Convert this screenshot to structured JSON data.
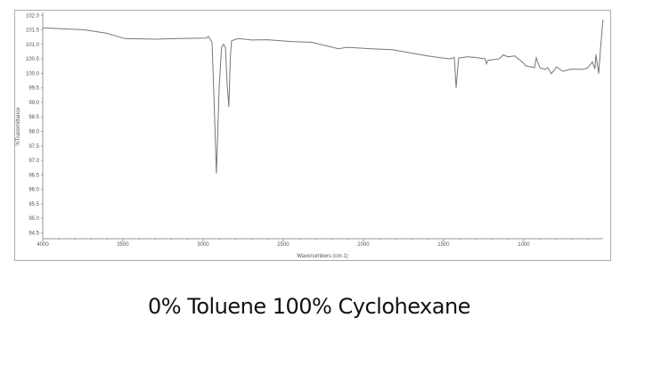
{
  "caption": "0% Toluene 100% Cyclohexane",
  "chart_data": {
    "type": "line",
    "title": "",
    "xlabel": "Wavenumbers (cm-1)",
    "ylabel": "%Transmittance",
    "xlim": [
      4000,
      505
    ],
    "ylim": [
      94.3,
      102.1
    ],
    "x_reversed": true,
    "grid": false,
    "x_ticks": [
      4000,
      3500,
      3000,
      2500,
      2000,
      1500,
      1000
    ],
    "y_ticks": [
      94.5,
      95.0,
      95.5,
      96.0,
      96.5,
      97.0,
      97.5,
      98.0,
      98.5,
      99.0,
      99.5,
      100.0,
      100.5,
      101.0,
      101.5,
      102.0
    ],
    "line_color": "#777777",
    "series": [
      {
        "points": [
          [
            4000,
            101.57
          ],
          [
            3739,
            101.5
          ],
          [
            3600,
            101.38
          ],
          [
            3489,
            101.2
          ],
          [
            3300,
            101.18
          ],
          [
            3156,
            101.2
          ],
          [
            2980,
            101.22
          ],
          [
            2967,
            101.27
          ],
          [
            2944,
            101.07
          ],
          [
            2930,
            98.8
          ],
          [
            2917,
            96.55
          ],
          [
            2900,
            99.5
          ],
          [
            2885,
            100.9
          ],
          [
            2872,
            101.0
          ],
          [
            2861,
            100.9
          ],
          [
            2850,
            99.6
          ],
          [
            2839,
            98.84
          ],
          [
            2830,
            100.6
          ],
          [
            2822,
            101.13
          ],
          [
            2778,
            101.2
          ],
          [
            2700,
            101.15
          ],
          [
            2600,
            101.16
          ],
          [
            2450,
            101.1
          ],
          [
            2322,
            101.07
          ],
          [
            2156,
            100.85
          ],
          [
            2100,
            100.9
          ],
          [
            2044,
            100.88
          ],
          [
            1950,
            100.85
          ],
          [
            1822,
            100.82
          ],
          [
            1700,
            100.7
          ],
          [
            1600,
            100.6
          ],
          [
            1530,
            100.55
          ],
          [
            1461,
            100.5
          ],
          [
            1433,
            100.55
          ],
          [
            1422,
            99.5
          ],
          [
            1406,
            100.53
          ],
          [
            1350,
            100.57
          ],
          [
            1300,
            100.55
          ],
          [
            1239,
            100.5
          ],
          [
            1233,
            100.33
          ],
          [
            1222,
            100.45
          ],
          [
            1156,
            100.5
          ],
          [
            1140,
            100.56
          ],
          [
            1128,
            100.64
          ],
          [
            1100,
            100.57
          ],
          [
            1056,
            100.6
          ],
          [
            1000,
            100.35
          ],
          [
            989,
            100.26
          ],
          [
            933,
            100.2
          ],
          [
            922,
            100.54
          ],
          [
            900,
            100.2
          ],
          [
            867,
            100.14
          ],
          [
            850,
            100.2
          ],
          [
            828,
            99.99
          ],
          [
            795,
            100.22
          ],
          [
            756,
            100.07
          ],
          [
            711,
            100.14
          ],
          [
            628,
            100.14
          ],
          [
            600,
            100.2
          ],
          [
            572,
            100.4
          ],
          [
            556,
            100.15
          ],
          [
            550,
            100.65
          ],
          [
            533,
            99.99
          ],
          [
            522,
            100.8
          ],
          [
            506,
            101.85
          ]
        ]
      }
    ]
  }
}
